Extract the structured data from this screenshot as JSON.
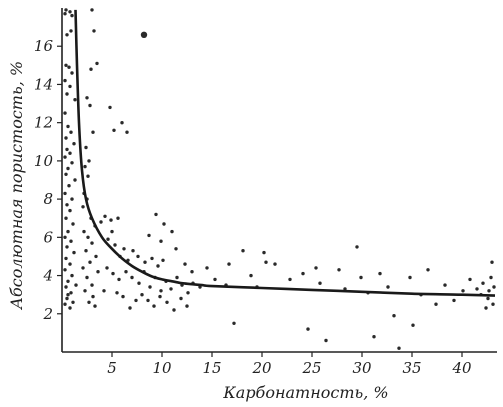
{
  "chart_data": {
    "type": "scatter",
    "title": "",
    "xlabel": "Карбонатность, %",
    "ylabel": "Абсолютная пористость, %",
    "xlim": [
      0,
      43.5
    ],
    "ylim": [
      0,
      18
    ],
    "xticks": [
      5,
      10,
      15,
      20,
      25,
      30,
      35,
      40
    ],
    "yticks": [
      2,
      4,
      6,
      8,
      10,
      12,
      14,
      16
    ],
    "grid": false,
    "series": [
      {
        "kind": "points",
        "points": [
          [
            0.4,
            17.9
          ],
          [
            0.8,
            17.8
          ],
          [
            1.0,
            17.6
          ],
          [
            0.3,
            17.7
          ],
          [
            0.9,
            16.8
          ],
          [
            0.5,
            16.6
          ],
          [
            0.4,
            15.0
          ],
          [
            0.7,
            14.9
          ],
          [
            1.0,
            14.6
          ],
          [
            0.3,
            14.2
          ],
          [
            0.8,
            13.9
          ],
          [
            0.5,
            13.5
          ],
          [
            1.3,
            13.2
          ],
          [
            0.3,
            12.5
          ],
          [
            0.6,
            11.8
          ],
          [
            0.9,
            11.5
          ],
          [
            0.4,
            11.2
          ],
          [
            1.2,
            10.9
          ],
          [
            0.5,
            10.6
          ],
          [
            0.8,
            10.4
          ],
          [
            0.3,
            10.2
          ],
          [
            1.0,
            9.9
          ],
          [
            0.6,
            9.6
          ],
          [
            0.4,
            9.3
          ],
          [
            1.3,
            9.0
          ],
          [
            0.7,
            8.7
          ],
          [
            0.3,
            8.3
          ],
          [
            1.0,
            8.0
          ],
          [
            0.5,
            7.7
          ],
          [
            0.8,
            7.4
          ],
          [
            0.4,
            7.0
          ],
          [
            1.1,
            6.7
          ],
          [
            0.6,
            6.3
          ],
          [
            0.3,
            6.0
          ],
          [
            0.9,
            5.8
          ],
          [
            0.5,
            5.5
          ],
          [
            1.2,
            5.2
          ],
          [
            0.4,
            4.9
          ],
          [
            0.8,
            4.6
          ],
          [
            0.3,
            4.3
          ],
          [
            1.0,
            4.0
          ],
          [
            0.6,
            3.7
          ],
          [
            0.4,
            3.4
          ],
          [
            0.9,
            3.1
          ],
          [
            0.5,
            2.8
          ],
          [
            0.3,
            2.5
          ],
          [
            0.8,
            2.3
          ],
          [
            1.1,
            2.6
          ],
          [
            0.6,
            3.0
          ],
          [
            1.4,
            3.5
          ],
          [
            3.0,
            17.9
          ],
          [
            3.2,
            16.8
          ],
          [
            3.5,
            15.1
          ],
          [
            2.9,
            14.8
          ],
          [
            2.5,
            13.3
          ],
          [
            2.8,
            12.9
          ],
          [
            3.1,
            11.5
          ],
          [
            2.4,
            10.7
          ],
          [
            2.7,
            10.0
          ],
          [
            2.3,
            9.7
          ],
          [
            2.6,
            9.2
          ],
          [
            2.2,
            8.3
          ],
          [
            2.5,
            8.0
          ],
          [
            2.1,
            7.6
          ],
          [
            2.9,
            7.0
          ],
          [
            3.3,
            6.6
          ],
          [
            2.2,
            6.3
          ],
          [
            2.6,
            6.0
          ],
          [
            3.0,
            5.7
          ],
          [
            2.4,
            5.3
          ],
          [
            3.4,
            5.0
          ],
          [
            2.8,
            4.7
          ],
          [
            2.1,
            4.4
          ],
          [
            3.6,
            4.2
          ],
          [
            2.5,
            3.9
          ],
          [
            3.0,
            3.5
          ],
          [
            2.3,
            3.2
          ],
          [
            3.1,
            2.9
          ],
          [
            2.7,
            2.6
          ],
          [
            3.3,
            2.4
          ],
          [
            3.9,
            6.8
          ],
          [
            4.3,
            7.1
          ],
          [
            4.9,
            6.9
          ],
          [
            5.6,
            7.0
          ],
          [
            5.0,
            6.3
          ],
          [
            4.6,
            5.9
          ],
          [
            5.3,
            5.6
          ],
          [
            6.2,
            5.4
          ],
          [
            5.8,
            5.0
          ],
          [
            6.6,
            4.8
          ],
          [
            7.1,
            5.3
          ],
          [
            7.6,
            5.0
          ],
          [
            8.3,
            4.7
          ],
          [
            9.0,
            4.9
          ],
          [
            9.6,
            4.5
          ],
          [
            10.1,
            4.8
          ],
          [
            4.8,
            12.8
          ],
          [
            5.2,
            11.6
          ],
          [
            6.0,
            12.0
          ],
          [
            6.5,
            11.5
          ],
          [
            4.5,
            4.4
          ],
          [
            5.1,
            4.1
          ],
          [
            5.7,
            3.8
          ],
          [
            6.4,
            4.2
          ],
          [
            7.0,
            3.9
          ],
          [
            7.7,
            3.6
          ],
          [
            8.2,
            4.2
          ],
          [
            8.8,
            3.4
          ],
          [
            9.3,
            3.9
          ],
          [
            9.9,
            3.2
          ],
          [
            10.4,
            3.7
          ],
          [
            10.9,
            3.3
          ],
          [
            11.5,
            3.9
          ],
          [
            12.0,
            3.5
          ],
          [
            12.6,
            3.1
          ],
          [
            13.1,
            3.6
          ],
          [
            13.8,
            3.4
          ],
          [
            8.0,
            3.0
          ],
          [
            8.6,
            2.7
          ],
          [
            9.2,
            2.4
          ],
          [
            9.8,
            2.9
          ],
          [
            10.5,
            2.6
          ],
          [
            11.2,
            2.2
          ],
          [
            11.9,
            2.8
          ],
          [
            12.5,
            2.4
          ],
          [
            6.8,
            2.3
          ],
          [
            7.4,
            2.7
          ],
          [
            4.2,
            3.2
          ],
          [
            5.5,
            3.1
          ],
          [
            6.1,
            2.9
          ],
          [
            9.4,
            7.2
          ],
          [
            10.2,
            6.7
          ],
          [
            11.0,
            6.3
          ],
          [
            8.7,
            6.1
          ],
          [
            9.9,
            5.8
          ],
          [
            11.4,
            5.4
          ],
          [
            12.3,
            4.6
          ],
          [
            13.0,
            4.2
          ],
          [
            14.5,
            4.4
          ],
          [
            15.3,
            3.8
          ],
          [
            16.7,
            4.6
          ],
          [
            16.4,
            3.5
          ],
          [
            17.2,
            1.5
          ],
          [
            18.1,
            5.3
          ],
          [
            18.9,
            4.0
          ],
          [
            19.5,
            3.4
          ],
          [
            20.2,
            5.2
          ],
          [
            20.4,
            4.7
          ],
          [
            21.3,
            4.6
          ],
          [
            22.8,
            3.8
          ],
          [
            24.1,
            4.1
          ],
          [
            24.6,
            1.2
          ],
          [
            25.4,
            4.4
          ],
          [
            25.8,
            3.6
          ],
          [
            26.4,
            0.6
          ],
          [
            27.7,
            4.3
          ],
          [
            28.3,
            3.3
          ],
          [
            29.5,
            5.5
          ],
          [
            29.9,
            3.9
          ],
          [
            30.6,
            3.1
          ],
          [
            31.2,
            0.8
          ],
          [
            31.8,
            4.1
          ],
          [
            32.6,
            3.4
          ],
          [
            33.2,
            1.9
          ],
          [
            33.7,
            0.2
          ],
          [
            34.8,
            3.9
          ],
          [
            35.1,
            1.4
          ],
          [
            35.9,
            3.0
          ],
          [
            36.6,
            4.3
          ],
          [
            37.4,
            2.5
          ],
          [
            38.3,
            3.5
          ],
          [
            39.2,
            2.7
          ],
          [
            40.1,
            3.2
          ],
          [
            40.8,
            3.8
          ],
          [
            41.5,
            3.3
          ],
          [
            42.1,
            3.6
          ],
          [
            42.6,
            2.8
          ],
          [
            42.9,
            3.9
          ],
          [
            43.0,
            4.7
          ],
          [
            42.7,
            3.2
          ],
          [
            43.1,
            2.5
          ],
          [
            43.2,
            3.4
          ],
          [
            42.4,
            2.3
          ],
          [
            41.9,
            3.0
          ]
        ],
        "large_points": [
          [
            8.2,
            16.6
          ]
        ]
      },
      {
        "kind": "line",
        "points": [
          [
            1.35,
            17.9
          ],
          [
            1.5,
            15.0
          ],
          [
            1.7,
            12.0
          ],
          [
            2.0,
            9.5
          ],
          [
            2.4,
            8.0
          ],
          [
            3.0,
            7.0
          ],
          [
            4.0,
            6.0
          ],
          [
            5.0,
            5.4
          ],
          [
            6.0,
            4.9
          ],
          [
            7.0,
            4.5
          ],
          [
            8.0,
            4.2
          ],
          [
            9.0,
            3.95
          ],
          [
            10.0,
            3.8
          ],
          [
            11.0,
            3.7
          ],
          [
            12.0,
            3.6
          ],
          [
            13.0,
            3.55
          ],
          [
            14.0,
            3.5
          ],
          [
            15.0,
            3.45
          ],
          [
            20.0,
            3.35
          ],
          [
            25.0,
            3.25
          ],
          [
            30.0,
            3.15
          ],
          [
            35.0,
            3.05
          ],
          [
            40.0,
            3.0
          ],
          [
            43.3,
            2.95
          ]
        ]
      }
    ]
  }
}
